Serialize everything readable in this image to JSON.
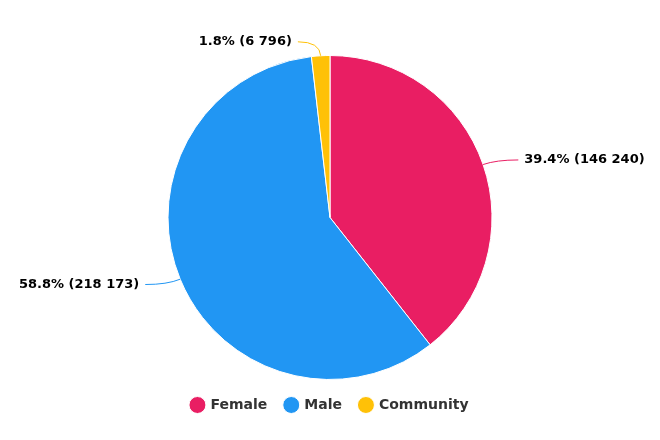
{
  "chart_data": {
    "type": "pie",
    "categories": [
      "Female",
      "Male",
      "Community"
    ],
    "values": [
      146240,
      218173,
      6796
    ],
    "value_labels": [
      "39.4% (146 240)",
      "58.8% (218 173)",
      "1.8% (6 796)"
    ],
    "colors": [
      "#e91e63",
      "#2196f3",
      "#ffc107"
    ],
    "data_labels": true,
    "legend": "bottom"
  }
}
